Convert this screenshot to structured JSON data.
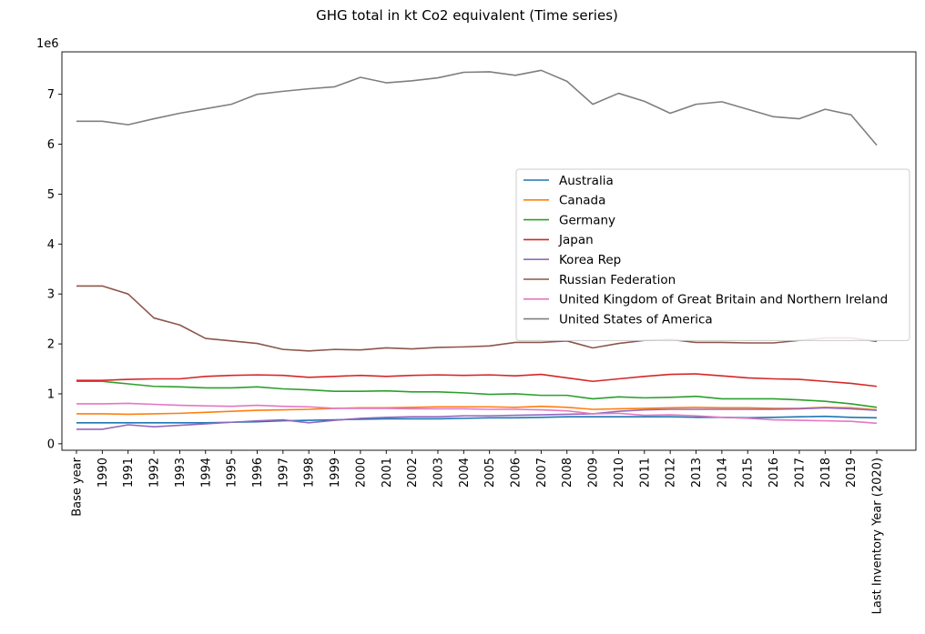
{
  "chart_data": {
    "type": "line",
    "title": "GHG total in kt Co2 equivalent (Time series)",
    "xlabel": "",
    "ylabel": "",
    "offset_label": "1e6",
    "ylim": [
      -0.13,
      7.85
    ],
    "yticks": [
      0,
      1,
      2,
      3,
      4,
      5,
      6,
      7
    ],
    "ytick_labels": [
      "0",
      "1",
      "2",
      "3",
      "4",
      "5",
      "6",
      "7"
    ],
    "legend_position": "center-right",
    "categories": [
      "Base year",
      "1990",
      "1991",
      "1992",
      "1993",
      "1994",
      "1995",
      "1996",
      "1997",
      "1998",
      "1999",
      "2000",
      "2001",
      "2002",
      "2003",
      "2004",
      "2005",
      "2006",
      "2007",
      "2008",
      "2009",
      "2010",
      "2011",
      "2012",
      "2013",
      "2014",
      "2015",
      "2016",
      "2017",
      "2018",
      "2019",
      "Last Inventory Year (2020)"
    ],
    "series": [
      {
        "name": "Australia",
        "color": "#1f77b4",
        "values": [
          0.42,
          0.42,
          0.42,
          0.42,
          0.42,
          0.42,
          0.43,
          0.44,
          0.46,
          0.47,
          0.48,
          0.49,
          0.5,
          0.5,
          0.5,
          0.51,
          0.52,
          0.52,
          0.53,
          0.54,
          0.54,
          0.54,
          0.54,
          0.54,
          0.53,
          0.53,
          0.52,
          0.53,
          0.54,
          0.55,
          0.53,
          0.52
        ]
      },
      {
        "name": "Canada",
        "color": "#ff7f0e",
        "values": [
          0.6,
          0.6,
          0.59,
          0.6,
          0.61,
          0.63,
          0.65,
          0.67,
          0.68,
          0.69,
          0.71,
          0.72,
          0.72,
          0.73,
          0.74,
          0.74,
          0.74,
          0.73,
          0.75,
          0.73,
          0.69,
          0.7,
          0.71,
          0.72,
          0.73,
          0.72,
          0.72,
          0.71,
          0.71,
          0.73,
          0.72,
          0.68
        ]
      },
      {
        "name": "Germany",
        "color": "#2ca02c",
        "values": [
          1.25,
          1.25,
          1.2,
          1.15,
          1.14,
          1.12,
          1.12,
          1.14,
          1.1,
          1.08,
          1.05,
          1.05,
          1.06,
          1.04,
          1.04,
          1.02,
          0.99,
          1.0,
          0.97,
          0.97,
          0.9,
          0.94,
          0.92,
          0.93,
          0.95,
          0.9,
          0.9,
          0.9,
          0.88,
          0.85,
          0.8,
          0.73
        ]
      },
      {
        "name": "Japan",
        "color": "#d62728",
        "values": [
          1.27,
          1.27,
          1.29,
          1.3,
          1.3,
          1.35,
          1.37,
          1.38,
          1.37,
          1.33,
          1.35,
          1.37,
          1.35,
          1.37,
          1.38,
          1.37,
          1.38,
          1.36,
          1.39,
          1.32,
          1.25,
          1.3,
          1.35,
          1.39,
          1.4,
          1.36,
          1.32,
          1.3,
          1.29,
          1.25,
          1.21,
          1.15
        ]
      },
      {
        "name": "Korea Rep",
        "color": "#9467bd",
        "values": [
          0.29,
          0.29,
          0.38,
          0.34,
          0.37,
          0.4,
          0.43,
          0.46,
          0.48,
          0.42,
          0.47,
          0.51,
          0.53,
          0.54,
          0.54,
          0.56,
          0.56,
          0.57,
          0.58,
          0.59,
          0.6,
          0.65,
          0.68,
          0.69,
          0.69,
          0.69,
          0.69,
          0.69,
          0.7,
          0.72,
          0.7,
          0.67
        ]
      },
      {
        "name": "Russian Federation",
        "color": "#8c564b",
        "values": [
          3.16,
          3.16,
          3.0,
          2.52,
          2.38,
          2.11,
          2.06,
          2.01,
          1.89,
          1.86,
          1.89,
          1.88,
          1.92,
          1.9,
          1.93,
          1.94,
          1.96,
          2.03,
          2.03,
          2.06,
          1.92,
          2.01,
          2.07,
          2.09,
          2.03,
          2.03,
          2.02,
          2.02,
          2.07,
          2.12,
          2.12,
          2.05
        ]
      },
      {
        "name": "United Kingdom of Great Britain and Northern Ireland",
        "color": "#e377c2",
        "values": [
          0.8,
          0.8,
          0.81,
          0.79,
          0.77,
          0.76,
          0.75,
          0.77,
          0.75,
          0.74,
          0.71,
          0.71,
          0.71,
          0.7,
          0.7,
          0.7,
          0.69,
          0.69,
          0.68,
          0.66,
          0.6,
          0.61,
          0.57,
          0.58,
          0.56,
          0.53,
          0.51,
          0.48,
          0.47,
          0.46,
          0.45,
          0.41
        ]
      },
      {
        "name": "United States of America",
        "color": "#7f7f7f",
        "values": [
          6.46,
          6.46,
          6.39,
          6.51,
          6.62,
          6.71,
          6.8,
          7.0,
          7.06,
          7.11,
          7.15,
          7.34,
          7.23,
          7.27,
          7.33,
          7.44,
          7.45,
          7.38,
          7.48,
          7.26,
          6.8,
          7.02,
          6.86,
          6.62,
          6.8,
          6.85,
          6.7,
          6.55,
          6.51,
          6.7,
          6.59,
          5.98
        ]
      }
    ]
  }
}
